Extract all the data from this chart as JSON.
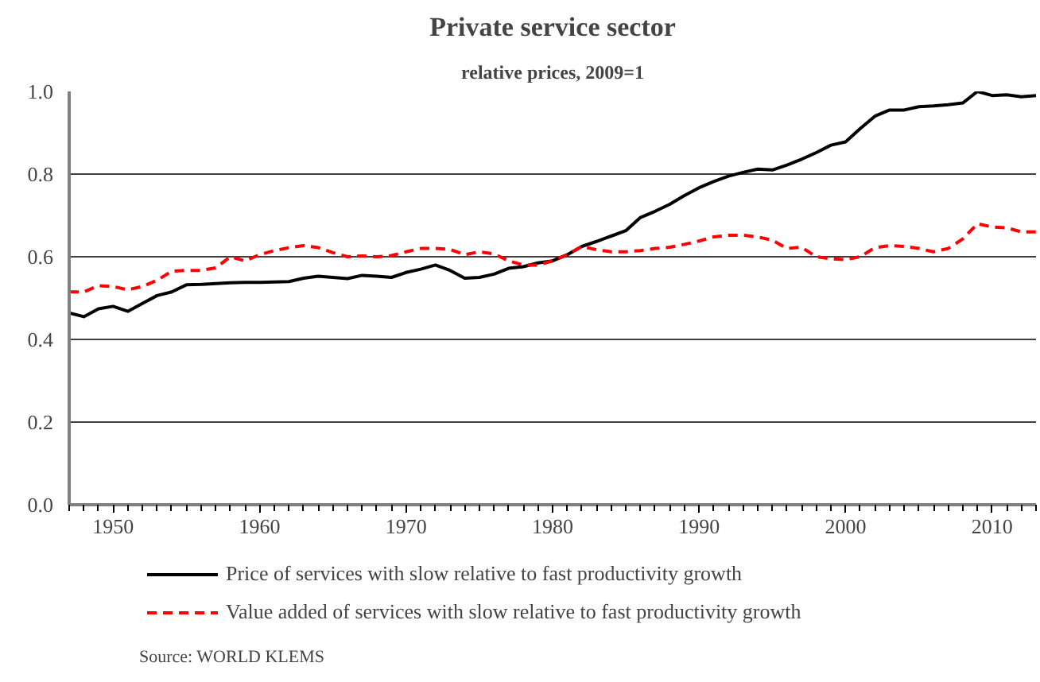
{
  "chart_data": {
    "type": "line",
    "title": "Private service sector",
    "subtitle": "relative prices, 2009=1",
    "x": [
      1947,
      1948,
      1949,
      1950,
      1951,
      1952,
      1953,
      1954,
      1955,
      1956,
      1957,
      1958,
      1959,
      1960,
      1961,
      1962,
      1963,
      1964,
      1965,
      1966,
      1967,
      1968,
      1969,
      1970,
      1971,
      1972,
      1973,
      1974,
      1975,
      1976,
      1977,
      1978,
      1979,
      1980,
      1981,
      1982,
      1983,
      1984,
      1985,
      1986,
      1987,
      1988,
      1989,
      1990,
      1991,
      1992,
      1993,
      1994,
      1995,
      1996,
      1997,
      1998,
      1999,
      2000,
      2001,
      2002,
      2003,
      2004,
      2005,
      2006,
      2007,
      2008,
      2009,
      2010,
      2011,
      2012,
      2013
    ],
    "series": [
      {
        "name": "Price of services with slow relative to fast productivity growth",
        "color": "#000000",
        "line_style": "solid",
        "values": [
          0.464,
          0.455,
          0.474,
          0.48,
          0.468,
          0.487,
          0.506,
          0.515,
          0.532,
          0.533,
          0.535,
          0.537,
          0.538,
          0.538,
          0.539,
          0.54,
          0.548,
          0.553,
          0.55,
          0.547,
          0.555,
          0.553,
          0.55,
          0.562,
          0.57,
          0.58,
          0.567,
          0.548,
          0.55,
          0.558,
          0.572,
          0.576,
          0.585,
          0.59,
          0.605,
          0.625,
          0.637,
          0.65,
          0.663,
          0.695,
          0.71,
          0.727,
          0.748,
          0.767,
          0.782,
          0.795,
          0.804,
          0.812,
          0.81,
          0.822,
          0.836,
          0.852,
          0.87,
          0.878,
          0.91,
          0.94,
          0.955,
          0.955,
          0.963,
          0.965,
          0.968,
          0.972,
          1.0,
          0.99,
          0.992,
          0.987,
          0.99
        ]
      },
      {
        "name": "Value added of services with slow relative to fast productivity growth",
        "color": "#ff0000",
        "line_style": "dashed",
        "values": [
          0.515,
          0.515,
          0.53,
          0.528,
          0.52,
          0.528,
          0.543,
          0.565,
          0.567,
          0.567,
          0.573,
          0.6,
          0.59,
          0.605,
          0.615,
          0.622,
          0.627,
          0.622,
          0.61,
          0.6,
          0.602,
          0.6,
          0.603,
          0.612,
          0.62,
          0.62,
          0.618,
          0.605,
          0.612,
          0.607,
          0.59,
          0.58,
          0.58,
          0.59,
          0.605,
          0.625,
          0.617,
          0.612,
          0.612,
          0.615,
          0.62,
          0.623,
          0.63,
          0.638,
          0.648,
          0.652,
          0.652,
          0.648,
          0.64,
          0.62,
          0.623,
          0.6,
          0.595,
          0.593,
          0.6,
          0.622,
          0.627,
          0.625,
          0.62,
          0.612,
          0.62,
          0.643,
          0.68,
          0.672,
          0.67,
          0.66,
          0.66
        ]
      }
    ],
    "xlim": [
      1947,
      2013
    ],
    "xticks": [
      1950,
      1960,
      1970,
      1980,
      1990,
      2000,
      2010
    ],
    "ylim": [
      0,
      1
    ],
    "yticks": [
      {
        "value": 0,
        "label": "0.0"
      },
      0.2,
      0.4,
      0.6,
      0.8,
      {
        "value": 1,
        "label": "1.0"
      }
    ],
    "grid": "y",
    "legend": "bottom",
    "marker": "none",
    "annotations": [
      "Source: WORLD KLEMS"
    ]
  }
}
